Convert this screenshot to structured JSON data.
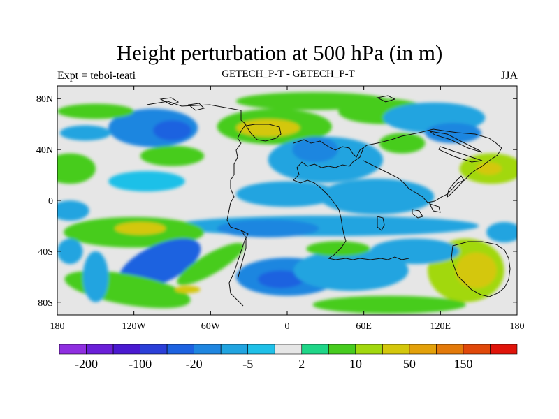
{
  "page": {
    "title": "Height perturbation at 500 hPa (in m)",
    "subtitle_left": "Expt = teboi-teati",
    "subtitle_center": "GETECH_P-T - GETECH_P-T",
    "subtitle_right": "JJA"
  },
  "chart_data": {
    "type": "heatmap",
    "title": "Height perturbation at 500 hPa (in m)",
    "xlabel": "",
    "ylabel": "",
    "xlim": [
      -180,
      180
    ],
    "ylim": [
      -90,
      90
    ],
    "x_ticks": [
      {
        "value": -180,
        "label": "180"
      },
      {
        "value": -120,
        "label": "120W"
      },
      {
        "value": -60,
        "label": "60W"
      },
      {
        "value": 0,
        "label": "0"
      },
      {
        "value": 60,
        "label": "60E"
      },
      {
        "value": 120,
        "label": "120E"
      },
      {
        "value": 180,
        "label": "180"
      }
    ],
    "y_ticks": [
      {
        "value": 80,
        "label": "80N"
      },
      {
        "value": 40,
        "label": "40N"
      },
      {
        "value": 0,
        "label": "0"
      },
      {
        "value": -40,
        "label": "40S"
      },
      {
        "value": -80,
        "label": "80S"
      }
    ],
    "colorbar": {
      "colors": [
        "#8f2fe0",
        "#6a1fd8",
        "#4a19d0",
        "#2b3fd8",
        "#1d62e0",
        "#1f86e0",
        "#21a4e0",
        "#1fc0e8",
        "#e6e6e6",
        "#1fd688",
        "#47cc1f",
        "#a2d80f",
        "#d4c70c",
        "#e3a10a",
        "#e37a0a",
        "#e0480a",
        "#e0140a"
      ],
      "labeled_ticks": [
        {
          "index": 1,
          "label": "-200"
        },
        {
          "index": 3,
          "label": "-100"
        },
        {
          "index": 5,
          "label": "-20"
        },
        {
          "index": 7,
          "label": "-5"
        },
        {
          "index": 9,
          "label": "2"
        },
        {
          "index": 11,
          "label": "10"
        },
        {
          "index": 13,
          "label": "50"
        },
        {
          "index": 15,
          "label": "150"
        }
      ]
    },
    "field_blobs": [
      {
        "name": "pacific-north-low",
        "lon": -105,
        "lat": 57,
        "rx": 35,
        "ry": 15,
        "value": -15,
        "rot": 0
      },
      {
        "name": "pacific-north-low-core",
        "lon": -90,
        "lat": 55,
        "rx": 15,
        "ry": 8,
        "value": -30,
        "rot": 0
      },
      {
        "name": "pacific-west-low",
        "lon": -158,
        "lat": 53,
        "rx": 20,
        "ry": 6,
        "value": -8,
        "rot": 0
      },
      {
        "name": "pacific-high-40n",
        "lon": -90,
        "lat": 35,
        "rx": 25,
        "ry": 8,
        "value": 6,
        "rot": 0
      },
      {
        "name": "pacific-north-high",
        "lon": -150,
        "lat": 70,
        "rx": 30,
        "ry": 6,
        "value": 5,
        "rot": 0
      },
      {
        "name": "atlantic-north-high",
        "lon": -10,
        "lat": 58,
        "rx": 45,
        "ry": 14,
        "value": 8,
        "rot": 0
      },
      {
        "name": "atlantic-north-high-core",
        "lon": -15,
        "lat": 57,
        "rx": 25,
        "ry": 7,
        "value": 30,
        "rot": 0
      },
      {
        "name": "arctic-high",
        "lon": 20,
        "lat": 78,
        "rx": 60,
        "ry": 7,
        "value": 6,
        "rot": 0
      },
      {
        "name": "eurasia-high",
        "lon": 75,
        "lat": 70,
        "rx": 35,
        "ry": 10,
        "value": 6,
        "rot": 0
      },
      {
        "name": "europe-low",
        "lon": 30,
        "lat": 32,
        "rx": 45,
        "ry": 18,
        "value": -6,
        "rot": 0
      },
      {
        "name": "europe-low-core",
        "lon": 22,
        "lat": 40,
        "rx": 18,
        "ry": 10,
        "value": -14,
        "rot": 0
      },
      {
        "name": "tropics-low",
        "lon": 0,
        "lat": 5,
        "rx": 40,
        "ry": 10,
        "value": -5,
        "rot": 0
      },
      {
        "name": "indian-low",
        "lon": 70,
        "lat": 3,
        "rx": 45,
        "ry": 14,
        "value": -5,
        "rot": 0
      },
      {
        "name": "east-asia-low",
        "lon": 115,
        "lat": 65,
        "rx": 40,
        "ry": 12,
        "value": -8,
        "rot": 0
      },
      {
        "name": "east-asia-low-core",
        "lon": 130,
        "lat": 53,
        "rx": 22,
        "ry": 8,
        "value": -18,
        "rot": 0
      },
      {
        "name": "asia-high",
        "lon": 90,
        "lat": 45,
        "rx": 18,
        "ry": 8,
        "value": 5,
        "rot": 0
      },
      {
        "name": "west-pacific-high",
        "lon": 160,
        "lat": 25,
        "rx": 25,
        "ry": 12,
        "value": 10,
        "rot": 0
      },
      {
        "name": "west-pacific-high-core",
        "lon": 158,
        "lat": 25,
        "rx": 10,
        "ry": 5,
        "value": 40,
        "rot": 0
      },
      {
        "name": "dateline-high",
        "lon": -170,
        "lat": 25,
        "rx": 20,
        "ry": 12,
        "value": 6,
        "rot": 0
      },
      {
        "name": "equatorial-low-west",
        "lon": -170,
        "lat": -8,
        "rx": 15,
        "ry": 8,
        "value": -6,
        "rot": 0
      },
      {
        "name": "east-pacific-tropic-low",
        "lon": -110,
        "lat": 15,
        "rx": 30,
        "ry": 8,
        "value": -4,
        "rot": 0
      },
      {
        "name": "tropical-band-low",
        "lon": 30,
        "lat": -20,
        "rx": 120,
        "ry": 8,
        "value": -6,
        "rot": 0
      },
      {
        "name": "south-america-low",
        "lon": -15,
        "lat": -22,
        "rx": 40,
        "ry": 7,
        "value": -10,
        "rot": 0
      },
      {
        "name": "south-pacific-high",
        "lon": -120,
        "lat": -25,
        "rx": 55,
        "ry": 12,
        "value": 8,
        "rot": 0
      },
      {
        "name": "south-pacific-high-core",
        "lon": -115,
        "lat": -22,
        "rx": 20,
        "ry": 5,
        "value": 30,
        "rot": 0
      },
      {
        "name": "south-pacific-low",
        "lon": -100,
        "lat": -50,
        "rx": 35,
        "ry": 15,
        "value": -20,
        "rot": -25
      },
      {
        "name": "south-pacific-low-core",
        "lon": -103,
        "lat": -48,
        "rx": 16,
        "ry": 7,
        "value": -40,
        "rot": -25
      },
      {
        "name": "antarctic-pacific-high",
        "lon": -125,
        "lat": -70,
        "rx": 50,
        "ry": 12,
        "value": 8,
        "rot": 10
      },
      {
        "name": "antarctic-pacific-high-core",
        "lon": -78,
        "lat": -70,
        "rx": 10,
        "ry": 3,
        "value": 40,
        "rot": 0
      },
      {
        "name": "south-atlantic-high",
        "lon": -60,
        "lat": -50,
        "rx": 30,
        "ry": 8,
        "value": 8,
        "rot": -30
      },
      {
        "name": "south-pacific-edge-low",
        "lon": -170,
        "lat": -40,
        "rx": 10,
        "ry": 10,
        "value": -8,
        "rot": 0
      },
      {
        "name": "south-pacific-band-low",
        "lon": -150,
        "lat": -60,
        "rx": 10,
        "ry": 20,
        "value": -6,
        "rot": 0
      },
      {
        "name": "south-atlantic-low",
        "lon": 0,
        "lat": -60,
        "rx": 40,
        "ry": 15,
        "value": -10,
        "rot": 0
      },
      {
        "name": "south-atlantic-low-core",
        "lon": -5,
        "lat": -62,
        "rx": 18,
        "ry": 7,
        "value": -22,
        "rot": 0
      },
      {
        "name": "indian-ocean-low",
        "lon": 50,
        "lat": -55,
        "rx": 45,
        "ry": 16,
        "value": -8,
        "rot": 0
      },
      {
        "name": "southern-africa-high",
        "lon": 40,
        "lat": -38,
        "rx": 25,
        "ry": 6,
        "value": 5,
        "rot": 0
      },
      {
        "name": "australia-high",
        "lon": 140,
        "lat": -55,
        "rx": 30,
        "ry": 25,
        "value": 15,
        "rot": 0
      },
      {
        "name": "australia-high-core",
        "lon": 148,
        "lat": -55,
        "rx": 16,
        "ry": 14,
        "value": 40,
        "rot": 0
      },
      {
        "name": "australia-north-low",
        "lon": 100,
        "lat": -40,
        "rx": 35,
        "ry": 10,
        "value": -8,
        "rot": 0
      },
      {
        "name": "dateline-south-low",
        "lon": 170,
        "lat": -25,
        "rx": 14,
        "ry": 8,
        "value": -8,
        "rot": 0
      },
      {
        "name": "antarctica-edge-high",
        "lon": 80,
        "lat": -82,
        "rx": 60,
        "ry": 7,
        "value": 6,
        "rot": 0
      }
    ]
  }
}
